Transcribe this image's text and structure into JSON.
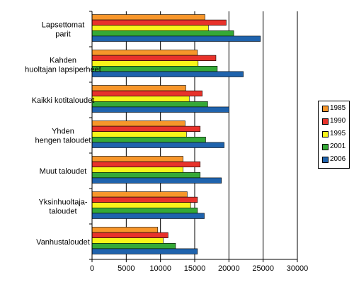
{
  "chart_data": {
    "type": "bar",
    "orientation": "horizontal",
    "title": "",
    "xlabel": "",
    "ylabel": "",
    "xlim": [
      0,
      30000
    ],
    "x_ticks": [
      "0",
      "5000",
      "10000",
      "15000",
      "20000",
      "25000",
      "30000"
    ],
    "grid": "vertical major gridlines",
    "legend_position": "right",
    "categories": [
      [
        "Lapsettomat",
        "parit"
      ],
      [
        "Kahden",
        "huoltajan lapsiperheet"
      ],
      [
        "Kaikki kotitaloudet"
      ],
      [
        "Yhden",
        "hengen taloudet"
      ],
      [
        "Muut taloudet"
      ],
      [
        "Yksinhuoltaja-",
        "taloudet"
      ],
      [
        "Vanhustaloudet"
      ]
    ],
    "series": [
      {
        "name": "1985",
        "color": "#f7962a",
        "values": [
          16500,
          15400,
          13700,
          13600,
          13300,
          13900,
          9600
        ]
      },
      {
        "name": "1990",
        "color": "#e8322b",
        "values": [
          19600,
          18100,
          16100,
          15800,
          15800,
          15400,
          11100
        ]
      },
      {
        "name": "1995",
        "color": "#f8f51a",
        "values": [
          17000,
          15500,
          14200,
          13800,
          13300,
          14400,
          10400
        ]
      },
      {
        "name": "2001",
        "color": "#35a937",
        "values": [
          20700,
          18300,
          16900,
          16600,
          15800,
          15400,
          12200
        ]
      },
      {
        "name": "2006",
        "color": "#1f63ad",
        "values": [
          24600,
          22100,
          20000,
          19300,
          18900,
          16400,
          15400
        ]
      }
    ]
  }
}
